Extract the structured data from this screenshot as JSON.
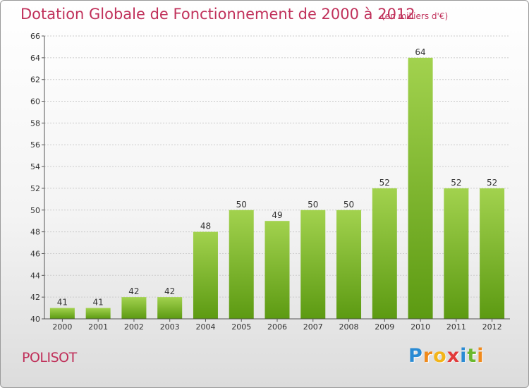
{
  "chart_data": {
    "type": "bar",
    "title": "Dotation Globale de Fonctionnement de 2000 à 2012",
    "subtitle": "(en milliers d'€)",
    "categories": [
      "2000",
      "2001",
      "2002",
      "2003",
      "2004",
      "2005",
      "2006",
      "2007",
      "2008",
      "2009",
      "2010",
      "2011",
      "2012"
    ],
    "values": [
      41,
      41,
      42,
      42,
      48,
      50,
      49,
      50,
      50,
      52,
      64,
      52,
      52
    ],
    "data_labels": [
      "41",
      "41",
      "42",
      "42",
      "48",
      "50",
      "49",
      "50",
      "50",
      "52",
      "64",
      "52",
      "52"
    ],
    "y_ticks": [
      "40",
      "42",
      "44",
      "46",
      "48",
      "50",
      "52",
      "54",
      "56",
      "58",
      "60",
      "62",
      "64",
      "66"
    ],
    "ylim": [
      40,
      66
    ],
    "grid": true,
    "xlabel": "",
    "ylabel": ""
  },
  "commune": "POLISOT",
  "logo": {
    "letters": [
      "P",
      "r",
      "o",
      "x",
      "i",
      "t",
      "i"
    ]
  },
  "colors": {
    "title": "#c0305a",
    "bar_light": "#a2d24e",
    "bar_dark": "#5c9a12",
    "grid": "#cccccc",
    "axis": "#555555"
  }
}
